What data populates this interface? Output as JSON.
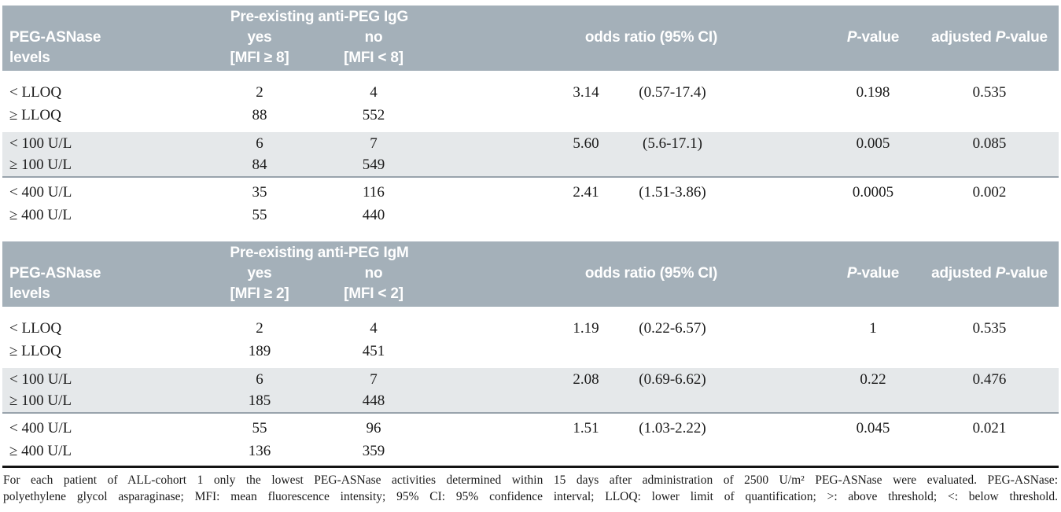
{
  "colors": {
    "header_bg": "#a4b0b9",
    "header_text": "#ffffff",
    "band_bg": "#e5e8ea",
    "group_divider": "#99a3ac",
    "bottom_rule": "#141414",
    "body_text": "#1a1a1a"
  },
  "tables": [
    {
      "id": "anti-peg-igg",
      "header": {
        "row_label_line1": "PEG-ASNase",
        "row_label_line2": "levels",
        "group_label": "Pre-existing anti-PEG IgG",
        "yes_label": "yes",
        "yes_sub": "[MFI ≥ 8]",
        "no_label": "no",
        "no_sub": "[MFI < 8]",
        "or_label": "odds ratio (95% CI)",
        "p_italic": "P",
        "p_suffix": "-value",
        "adj_prefix": "adjusted "
      },
      "groups": [
        {
          "rows": [
            {
              "level": "< LLOQ",
              "yes": "2",
              "no": "4",
              "or": "3.14",
              "ci": "(0.57-17.4)",
              "p": "0.198",
              "adjp": "0.535"
            },
            {
              "level": "≥ LLOQ",
              "yes": "88",
              "no": "552"
            }
          ]
        },
        {
          "rows": [
            {
              "level": "< 100 U/L",
              "yes": "6",
              "no": "7",
              "or": "5.60",
              "ci": "(5.6-17.1)",
              "p": "0.005",
              "adjp": "0.085"
            },
            {
              "level": "≥ 100 U/L",
              "yes": "84",
              "no": "549"
            }
          ]
        },
        {
          "rows": [
            {
              "level": "< 400 U/L",
              "yes": "35",
              "no": "116",
              "or": "2.41",
              "ci": "(1.51-3.86)",
              "p": "0.0005",
              "adjp": "0.002"
            },
            {
              "level": "≥ 400 U/L",
              "yes": "55",
              "no": "440"
            }
          ]
        }
      ]
    },
    {
      "id": "anti-peg-igm",
      "header": {
        "row_label_line1": "PEG-ASNase",
        "row_label_line2": "levels",
        "group_label": "Pre-existing anti-PEG IgM",
        "yes_label": "yes",
        "yes_sub": "[MFI ≥ 2]",
        "no_label": "no",
        "no_sub": "[MFI < 2]",
        "or_label": "odds ratio (95% CI)",
        "p_italic": "P",
        "p_suffix": "-value",
        "adj_prefix": "adjusted "
      },
      "groups": [
        {
          "rows": [
            {
              "level": "< LLOQ",
              "yes": "2",
              "no": "4",
              "or": "1.19",
              "ci": "(0.22-6.57)",
              "p": "1",
              "adjp": "0.535"
            },
            {
              "level": "≥ LLOQ",
              "yes": "189",
              "no": "451"
            }
          ]
        },
        {
          "rows": [
            {
              "level": "< 100 U/L",
              "yes": "6",
              "no": "7",
              "or": "2.08",
              "ci": "(0.69-6.62)",
              "p": "0.22",
              "adjp": "0.476"
            },
            {
              "level": "≥ 100 U/L",
              "yes": "185",
              "no": "448"
            }
          ]
        },
        {
          "rows": [
            {
              "level": "< 400 U/L",
              "yes": "55",
              "no": "96",
              "or": "1.51",
              "ci": "(1.03-2.22)",
              "p": "0.045",
              "adjp": "0.021"
            },
            {
              "level": "≥ 400 U/L",
              "yes": "136",
              "no": "359"
            }
          ]
        }
      ]
    }
  ],
  "footnote": {
    "line1": "For each patient of ALL-cohort 1 only the lowest PEG-ASNase activities determined within 15 days after administration of 2500 U/m² PEG-ASNase were evaluated. PEG-ASNase:",
    "line2": "polyethylene glycol asparaginase; MFI: mean fluorescence intensity; 95% CI: 95% confidence interval; LLOQ: lower limit of quantification; >: above threshold; <: below threshold."
  }
}
